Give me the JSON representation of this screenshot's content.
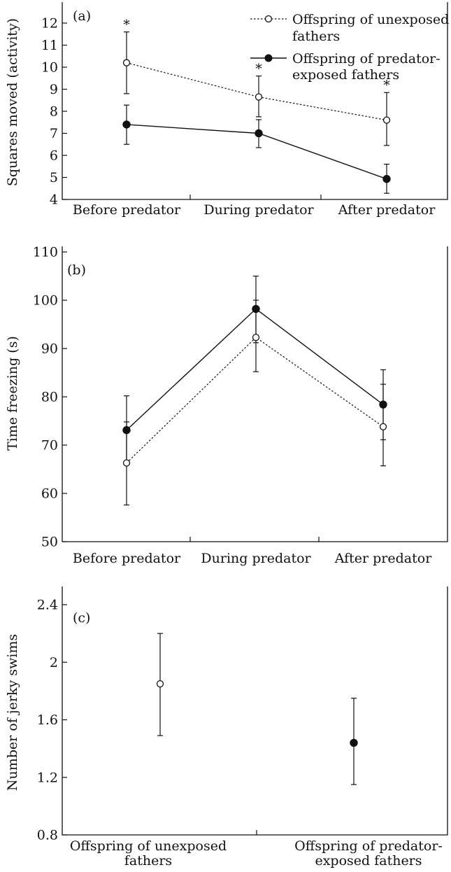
{
  "chart_data": [
    {
      "type": "line",
      "panel_label": "(a)",
      "ylabel": "Squares moved (activity)",
      "categories": [
        "Before predator",
        "During predator",
        "After predator"
      ],
      "ylim": [
        4,
        12.5
      ],
      "yticks": [
        4,
        5,
        6,
        7,
        8,
        9,
        10,
        11,
        12
      ],
      "significance": [
        "*",
        "*",
        "*"
      ],
      "legend": {
        "placement": "top-right"
      },
      "series": [
        {
          "name": "Offspring of unexposed fathers",
          "marker": "open-circle",
          "line": "dotted",
          "values": [
            10.2,
            8.65,
            7.6
          ],
          "err_low": [
            8.8,
            7.75,
            6.45
          ],
          "err_high": [
            11.6,
            9.6,
            8.85
          ]
        },
        {
          "name": "Offspring of predator-exposed fathers",
          "marker": "filled-circle",
          "line": "solid",
          "values": [
            7.4,
            7.0,
            4.93
          ],
          "err_low": [
            6.5,
            6.35,
            4.28
          ],
          "err_high": [
            8.28,
            7.62,
            5.6
          ]
        }
      ]
    },
    {
      "type": "line",
      "panel_label": "(b)",
      "ylabel": "Time freezing (s)",
      "categories": [
        "Before predator",
        "During predator",
        "After predator"
      ],
      "ylim": [
        50,
        112
      ],
      "yticks": [
        50,
        60,
        70,
        80,
        90,
        100,
        110
      ],
      "series": [
        {
          "name": "Offspring of unexposed fathers",
          "marker": "open-circle",
          "line": "dotted",
          "values": [
            66.3,
            92.3,
            73.8
          ],
          "err_low": [
            57.6,
            85.2,
            65.7
          ],
          "err_high": [
            74.8,
            100.0,
            82.6
          ]
        },
        {
          "name": "Offspring of predator-exposed fathers",
          "marker": "filled-circle",
          "line": "solid",
          "values": [
            73.1,
            98.2,
            78.4
          ],
          "err_low": [
            66.0,
            91.2,
            71.1
          ],
          "err_high": [
            80.2,
            105.0,
            85.6
          ]
        }
      ]
    },
    {
      "type": "scatter",
      "panel_label": "(c)",
      "ylabel": "Number of jerky swims",
      "categories": [
        "Offspring of unexposed fathers",
        "Offspring of predator-exposed fathers"
      ],
      "category_lines": [
        [
          "Offspring of unexposed",
          "fathers"
        ],
        [
          "Offspring of predator-",
          "exposed fathers"
        ]
      ],
      "ylim": [
        0.8,
        2.52
      ],
      "yticks": [
        "0.8",
        "1.2",
        "1.6",
        "2",
        "2.4"
      ],
      "points": [
        {
          "marker": "open-circle",
          "value": 1.85,
          "err_low": 1.49,
          "err_high": 2.2
        },
        {
          "marker": "filled-circle",
          "value": 1.44,
          "err_low": 1.15,
          "err_high": 1.75
        }
      ]
    }
  ]
}
